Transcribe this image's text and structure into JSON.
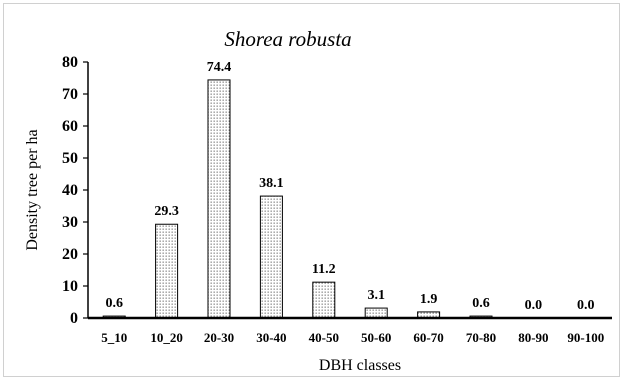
{
  "chart_data": {
    "type": "bar",
    "title": "Shorea robusta",
    "xlabel": "DBH classes",
    "ylabel": "Density tree per ha",
    "categories": [
      "5_10",
      "10_20",
      "20-30",
      "30-40",
      "40-50",
      "50-60",
      "60-70",
      "70-80",
      "80-90",
      "90-100"
    ],
    "values": [
      0.6,
      29.3,
      74.4,
      38.1,
      11.2,
      3.1,
      1.9,
      0.6,
      0.0,
      0.0
    ],
    "data_labels": [
      "0.6",
      "29.3",
      "74.4",
      "38.1",
      "11.2",
      "3.1",
      "1.9",
      "0.6",
      "0.0",
      "0.0"
    ],
    "ylim": [
      0,
      80
    ],
    "yticks": [
      0,
      10,
      20,
      30,
      40,
      50,
      60,
      70,
      80
    ],
    "grid": false,
    "legend": "none",
    "bar_fill": "dotted",
    "colors": {
      "bar_stroke": "#000000",
      "dot": "#555555",
      "background": "#ffffff"
    }
  }
}
